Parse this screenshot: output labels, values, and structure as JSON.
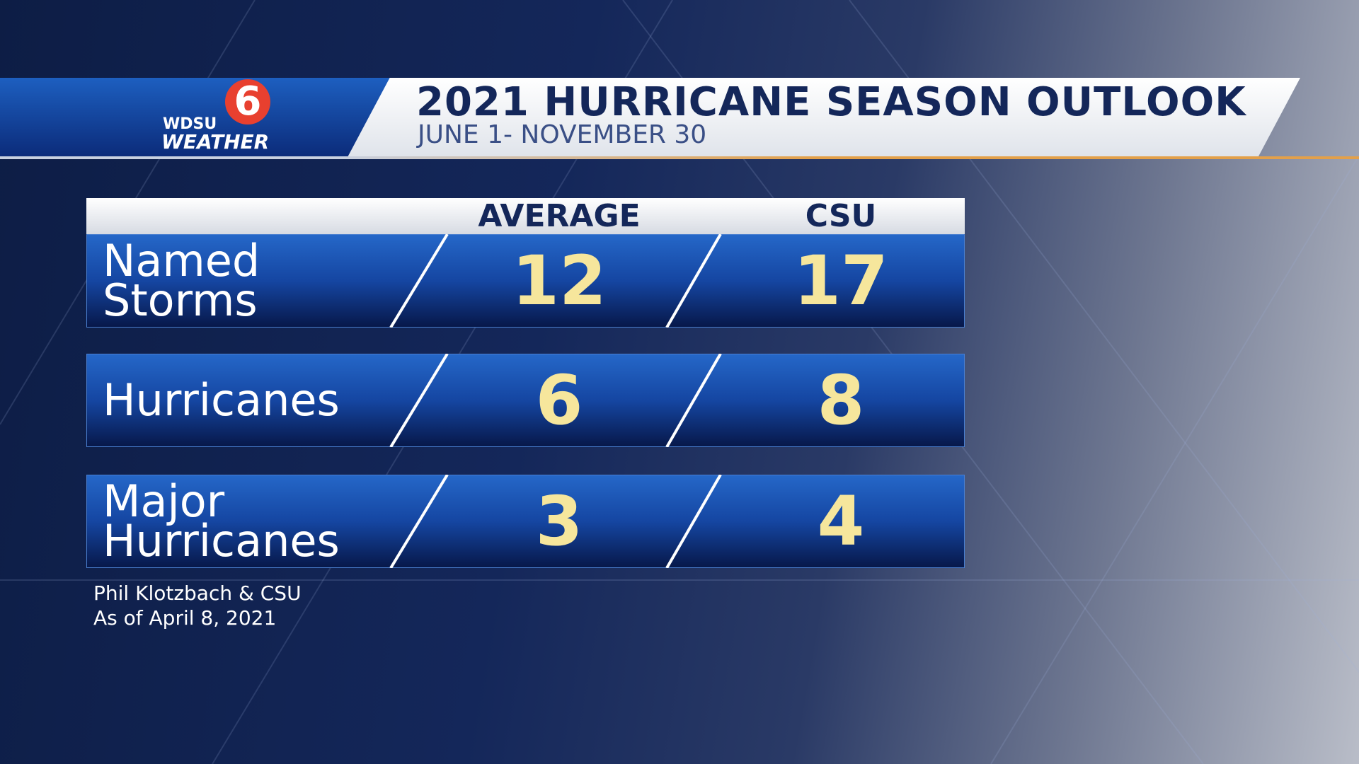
{
  "logo": {
    "station": "WDSU",
    "label": "WEATHER"
  },
  "header": {
    "title": "2021 HURRICANE SEASON OUTLOOK",
    "subtitle": "JUNE 1- NOVEMBER 30"
  },
  "table": {
    "columns": [
      "AVERAGE",
      "CSU"
    ],
    "rows": [
      {
        "label": [
          "Named",
          "Storms"
        ],
        "values": [
          12,
          17
        ]
      },
      {
        "label": [
          "Hurricanes"
        ],
        "values": [
          6,
          8
        ]
      },
      {
        "label": [
          "Major",
          "Hurricanes"
        ],
        "values": [
          3,
          4
        ]
      }
    ]
  },
  "source": [
    "Phil Klotzbach & CSU",
    "As of April 8, 2021"
  ]
}
